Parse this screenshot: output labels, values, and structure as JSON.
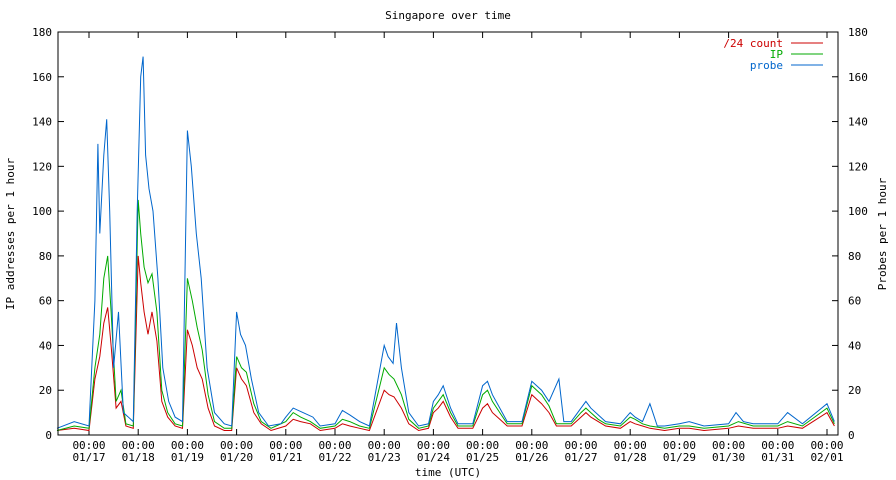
{
  "chart_data": {
    "type": "line",
    "title": "Singapore over time",
    "xlabel": "time (UTC)",
    "ylabel": "IP addresses per 1 hour",
    "y2label": "Probes per 1 hour",
    "ylim": [
      0,
      180
    ],
    "y2lim": [
      0,
      180
    ],
    "yticks": [
      "0",
      "20",
      "40",
      "60",
      "80",
      "100",
      "120",
      "140",
      "160",
      "180"
    ],
    "xticks": [
      {
        "time": "00:00",
        "date": "01/17"
      },
      {
        "time": "00:00",
        "date": "01/18"
      },
      {
        "time": "00:00",
        "date": "01/19"
      },
      {
        "time": "00:00",
        "date": "01/20"
      },
      {
        "time": "00:00",
        "date": "01/21"
      },
      {
        "time": "00:00",
        "date": "01/22"
      },
      {
        "time": "00:00",
        "date": "01/23"
      },
      {
        "time": "00:00",
        "date": "01/24"
      },
      {
        "time": "00:00",
        "date": "01/25"
      },
      {
        "time": "00:00",
        "date": "01/26"
      },
      {
        "time": "00:00",
        "date": "01/27"
      },
      {
        "time": "00:00",
        "date": "01/28"
      },
      {
        "time": "00:00",
        "date": "01/29"
      },
      {
        "time": "00:00",
        "date": "01/30"
      },
      {
        "time": "00:00",
        "date": "01/31"
      },
      {
        "time": "00:00",
        "date": "02/01"
      }
    ],
    "x_day_range": [
      -0.65,
      15.15
    ],
    "grid": false,
    "legend_position": "top-right",
    "series": [
      {
        "name": "/24 count",
        "color": "#cc0000",
        "points": [
          [
            -0.65,
            2
          ],
          [
            -0.3,
            3
          ],
          [
            0,
            2
          ],
          [
            0.12,
            25
          ],
          [
            0.22,
            35
          ],
          [
            0.3,
            50
          ],
          [
            0.38,
            57
          ],
          [
            0.45,
            40
          ],
          [
            0.55,
            12
          ],
          [
            0.65,
            15
          ],
          [
            0.75,
            4
          ],
          [
            0.9,
            3
          ],
          [
            1.0,
            80
          ],
          [
            1.05,
            68
          ],
          [
            1.12,
            55
          ],
          [
            1.2,
            45
          ],
          [
            1.28,
            55
          ],
          [
            1.38,
            42
          ],
          [
            1.48,
            15
          ],
          [
            1.6,
            8
          ],
          [
            1.75,
            4
          ],
          [
            1.9,
            3
          ],
          [
            2.0,
            47
          ],
          [
            2.1,
            40
          ],
          [
            2.2,
            30
          ],
          [
            2.3,
            25
          ],
          [
            2.42,
            12
          ],
          [
            2.55,
            4
          ],
          [
            2.75,
            2
          ],
          [
            2.9,
            2
          ],
          [
            3.0,
            30
          ],
          [
            3.1,
            25
          ],
          [
            3.2,
            22
          ],
          [
            3.35,
            10
          ],
          [
            3.5,
            5
          ],
          [
            3.7,
            2
          ],
          [
            4.0,
            4
          ],
          [
            4.15,
            7
          ],
          [
            4.3,
            6
          ],
          [
            4.5,
            5
          ],
          [
            4.7,
            2
          ],
          [
            5.0,
            3
          ],
          [
            5.15,
            5
          ],
          [
            5.3,
            4
          ],
          [
            5.5,
            3
          ],
          [
            5.7,
            2
          ],
          [
            6.0,
            20
          ],
          [
            6.1,
            18
          ],
          [
            6.2,
            17
          ],
          [
            6.35,
            12
          ],
          [
            6.5,
            5
          ],
          [
            6.7,
            2
          ],
          [
            6.9,
            3
          ],
          [
            7.0,
            10
          ],
          [
            7.1,
            12
          ],
          [
            7.2,
            15
          ],
          [
            7.35,
            8
          ],
          [
            7.5,
            3
          ],
          [
            7.8,
            3
          ],
          [
            8.0,
            12
          ],
          [
            8.1,
            14
          ],
          [
            8.2,
            10
          ],
          [
            8.35,
            7
          ],
          [
            8.5,
            4
          ],
          [
            8.8,
            4
          ],
          [
            9.0,
            18
          ],
          [
            9.1,
            16
          ],
          [
            9.2,
            14
          ],
          [
            9.35,
            10
          ],
          [
            9.5,
            4
          ],
          [
            9.8,
            4
          ],
          [
            10.0,
            8
          ],
          [
            10.1,
            10
          ],
          [
            10.2,
            8
          ],
          [
            10.35,
            6
          ],
          [
            10.5,
            4
          ],
          [
            10.8,
            3
          ],
          [
            11.0,
            6
          ],
          [
            11.1,
            5
          ],
          [
            11.25,
            4
          ],
          [
            11.4,
            3
          ],
          [
            11.7,
            2
          ],
          [
            12.0,
            3
          ],
          [
            12.2,
            3
          ],
          [
            12.5,
            2
          ],
          [
            13.0,
            3
          ],
          [
            13.2,
            4
          ],
          [
            13.5,
            3
          ],
          [
            14.0,
            3
          ],
          [
            14.2,
            4
          ],
          [
            14.5,
            3
          ],
          [
            15.0,
            10
          ],
          [
            15.15,
            4
          ]
        ]
      },
      {
        "name": "IP",
        "color": "#00aa00",
        "points": [
          [
            -0.65,
            2
          ],
          [
            -0.3,
            4
          ],
          [
            0,
            3
          ],
          [
            0.12,
            30
          ],
          [
            0.22,
            45
          ],
          [
            0.3,
            70
          ],
          [
            0.38,
            80
          ],
          [
            0.45,
            55
          ],
          [
            0.55,
            15
          ],
          [
            0.65,
            20
          ],
          [
            0.75,
            5
          ],
          [
            0.9,
            4
          ],
          [
            1.0,
            105
          ],
          [
            1.05,
            90
          ],
          [
            1.12,
            75
          ],
          [
            1.2,
            68
          ],
          [
            1.28,
            72
          ],
          [
            1.38,
            55
          ],
          [
            1.48,
            20
          ],
          [
            1.6,
            10
          ],
          [
            1.75,
            5
          ],
          [
            1.9,
            4
          ],
          [
            2.0,
            70
          ],
          [
            2.1,
            60
          ],
          [
            2.2,
            48
          ],
          [
            2.3,
            38
          ],
          [
            2.42,
            18
          ],
          [
            2.55,
            6
          ],
          [
            2.75,
            3
          ],
          [
            2.9,
            3
          ],
          [
            3.0,
            35
          ],
          [
            3.1,
            30
          ],
          [
            3.2,
            28
          ],
          [
            3.35,
            14
          ],
          [
            3.5,
            6
          ],
          [
            3.7,
            3
          ],
          [
            4.0,
            6
          ],
          [
            4.15,
            10
          ],
          [
            4.3,
            8
          ],
          [
            4.5,
            6
          ],
          [
            4.7,
            3
          ],
          [
            5.0,
            4
          ],
          [
            5.15,
            7
          ],
          [
            5.3,
            6
          ],
          [
            5.5,
            4
          ],
          [
            5.7,
            3
          ],
          [
            6.0,
            30
          ],
          [
            6.1,
            27
          ],
          [
            6.2,
            25
          ],
          [
            6.35,
            18
          ],
          [
            6.5,
            7
          ],
          [
            6.7,
            3
          ],
          [
            6.9,
            4
          ],
          [
            7.0,
            12
          ],
          [
            7.1,
            15
          ],
          [
            7.2,
            18
          ],
          [
            7.35,
            10
          ],
          [
            7.5,
            4
          ],
          [
            7.8,
            4
          ],
          [
            8.0,
            18
          ],
          [
            8.1,
            20
          ],
          [
            8.2,
            15
          ],
          [
            8.35,
            10
          ],
          [
            8.5,
            5
          ],
          [
            8.8,
            5
          ],
          [
            9.0,
            22
          ],
          [
            9.1,
            20
          ],
          [
            9.2,
            18
          ],
          [
            9.35,
            13
          ],
          [
            9.5,
            5
          ],
          [
            9.8,
            5
          ],
          [
            10.0,
            10
          ],
          [
            10.1,
            12
          ],
          [
            10.2,
            10
          ],
          [
            10.35,
            7
          ],
          [
            10.5,
            5
          ],
          [
            10.8,
            4
          ],
          [
            11.0,
            8
          ],
          [
            11.1,
            7
          ],
          [
            11.25,
            5
          ],
          [
            11.4,
            4
          ],
          [
            11.7,
            3
          ],
          [
            12.0,
            4
          ],
          [
            12.2,
            4
          ],
          [
            12.5,
            3
          ],
          [
            13.0,
            4
          ],
          [
            13.2,
            6
          ],
          [
            13.5,
            4
          ],
          [
            14.0,
            4
          ],
          [
            14.2,
            6
          ],
          [
            14.5,
            4
          ],
          [
            15.0,
            12
          ],
          [
            15.15,
            5
          ]
        ]
      },
      {
        "name": "probe",
        "color": "#0066cc",
        "points": [
          [
            -0.65,
            3
          ],
          [
            -0.3,
            6
          ],
          [
            0,
            4
          ],
          [
            0.12,
            60
          ],
          [
            0.18,
            130
          ],
          [
            0.22,
            90
          ],
          [
            0.3,
            125
          ],
          [
            0.36,
            141
          ],
          [
            0.42,
            100
          ],
          [
            0.5,
            30
          ],
          [
            0.6,
            55
          ],
          [
            0.7,
            10
          ],
          [
            0.9,
            6
          ],
          [
            0.98,
            100
          ],
          [
            1.05,
            160
          ],
          [
            1.1,
            169
          ],
          [
            1.15,
            125
          ],
          [
            1.22,
            110
          ],
          [
            1.3,
            100
          ],
          [
            1.4,
            70
          ],
          [
            1.5,
            30
          ],
          [
            1.62,
            15
          ],
          [
            1.75,
            8
          ],
          [
            1.9,
            6
          ],
          [
            2.0,
            136
          ],
          [
            2.08,
            120
          ],
          [
            2.18,
            90
          ],
          [
            2.28,
            70
          ],
          [
            2.4,
            30
          ],
          [
            2.55,
            10
          ],
          [
            2.75,
            5
          ],
          [
            2.9,
            4
          ],
          [
            3.0,
            55
          ],
          [
            3.08,
            45
          ],
          [
            3.18,
            40
          ],
          [
            3.3,
            25
          ],
          [
            3.45,
            10
          ],
          [
            3.65,
            4
          ],
          [
            3.9,
            5
          ],
          [
            4.0,
            8
          ],
          [
            4.15,
            12
          ],
          [
            4.35,
            10
          ],
          [
            4.55,
            8
          ],
          [
            4.7,
            4
          ],
          [
            5.0,
            5
          ],
          [
            5.15,
            11
          ],
          [
            5.3,
            9
          ],
          [
            5.5,
            6
          ],
          [
            5.7,
            4
          ],
          [
            6.0,
            40
          ],
          [
            6.08,
            35
          ],
          [
            6.18,
            32
          ],
          [
            6.25,
            50
          ],
          [
            6.35,
            30
          ],
          [
            6.5,
            10
          ],
          [
            6.7,
            4
          ],
          [
            6.9,
            5
          ],
          [
            7.0,
            15
          ],
          [
            7.1,
            18
          ],
          [
            7.2,
            22
          ],
          [
            7.35,
            12
          ],
          [
            7.5,
            5
          ],
          [
            7.8,
            5
          ],
          [
            8.0,
            22
          ],
          [
            8.1,
            24
          ],
          [
            8.2,
            18
          ],
          [
            8.35,
            12
          ],
          [
            8.5,
            6
          ],
          [
            8.8,
            6
          ],
          [
            9.0,
            24
          ],
          [
            9.1,
            22
          ],
          [
            9.2,
            20
          ],
          [
            9.35,
            15
          ],
          [
            9.55,
            25
          ],
          [
            9.65,
            6
          ],
          [
            9.8,
            6
          ],
          [
            10.0,
            12
          ],
          [
            10.1,
            15
          ],
          [
            10.2,
            12
          ],
          [
            10.35,
            9
          ],
          [
            10.5,
            6
          ],
          [
            10.8,
            5
          ],
          [
            11.0,
            10
          ],
          [
            11.1,
            8
          ],
          [
            11.25,
            6
          ],
          [
            11.4,
            14
          ],
          [
            11.55,
            4
          ],
          [
            11.7,
            4
          ],
          [
            12.0,
            5
          ],
          [
            12.2,
            6
          ],
          [
            12.5,
            4
          ],
          [
            13.0,
            5
          ],
          [
            13.15,
            10
          ],
          [
            13.3,
            6
          ],
          [
            13.5,
            5
          ],
          [
            14.0,
            5
          ],
          [
            14.2,
            10
          ],
          [
            14.5,
            5
          ],
          [
            15.0,
            14
          ],
          [
            15.15,
            6
          ]
        ]
      }
    ]
  }
}
